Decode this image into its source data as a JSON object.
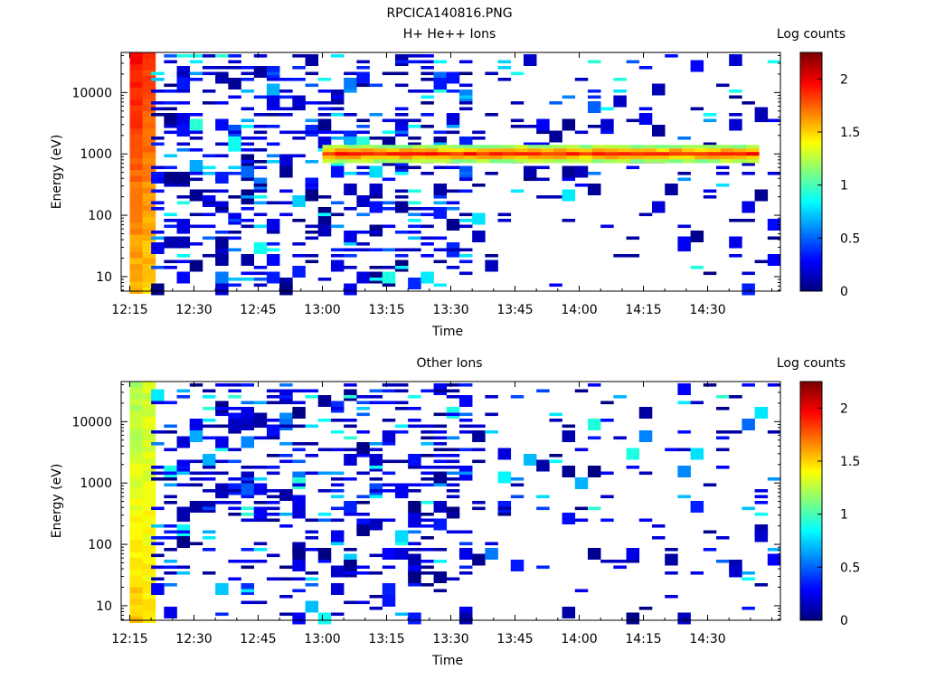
{
  "figure_title": "RPCICA140816.PNG",
  "colormap_stops": [
    "#00007f",
    "#0000ff",
    "#007fff",
    "#00ffff",
    "#7fff7f",
    "#ffff00",
    "#ff7f00",
    "#ff0000",
    "#7f0000"
  ],
  "chart_data": [
    {
      "type": "heatmap",
      "title": "H+ He++ Ions",
      "xlabel": "Time",
      "ylabel": "Energy (eV)",
      "x_ticks": [
        "12:15",
        "12:30",
        "12:45",
        "13:00",
        "13:15",
        "13:30",
        "13:45",
        "14:00",
        "14:15",
        "14:30"
      ],
      "y_ticks": [
        "10",
        "100",
        "1000",
        "10000"
      ],
      "y_scale": "log",
      "colorbar": {
        "label": "Log counts",
        "ticks": [
          "0",
          "0.5",
          "1",
          "1.5",
          "2"
        ],
        "range": [
          0,
          2.25
        ]
      },
      "dense_columns": [
        {
          "time": "12:15",
          "level_high": 1.95,
          "level_low": 1.55
        },
        {
          "time": "12:18",
          "level_high": 1.85,
          "level_low": 1.5
        }
      ],
      "band": {
        "energy": 1000,
        "from": "13:00",
        "to": "14:40",
        "level": 1.9
      },
      "sparse_seed": 11
    },
    {
      "type": "heatmap",
      "title": "Other Ions",
      "xlabel": "Time",
      "ylabel": "Energy (eV)",
      "x_ticks": [
        "12:15",
        "12:30",
        "12:45",
        "13:00",
        "13:15",
        "13:30",
        "13:45",
        "14:00",
        "14:15",
        "14:30"
      ],
      "y_ticks": [
        "10",
        "100",
        "1000",
        "10000"
      ],
      "y_scale": "log",
      "colorbar": {
        "label": "Log counts",
        "ticks": [
          "0",
          "0.5",
          "1",
          "1.5",
          "2"
        ],
        "range": [
          0,
          2.25
        ]
      },
      "dense_columns": [
        {
          "time": "12:15",
          "level_high": 1.2,
          "level_low": 1.55
        },
        {
          "time": "12:18",
          "level_high": 1.3,
          "level_low": 1.45
        }
      ],
      "band": null,
      "sparse_seed": 29
    }
  ]
}
